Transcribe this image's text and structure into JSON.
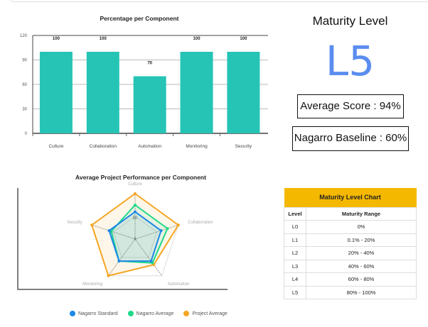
{
  "maturity": {
    "title": "Maturity Level",
    "level": "L5",
    "average_score": "Average Score :  94%",
    "baseline": "Nagarro Baseline : 60%"
  },
  "chart_data": [
    {
      "type": "bar",
      "title": "Percentage per Component",
      "categories": [
        "Culture",
        "Collaboration",
        "Automation",
        "Monitoring",
        "Security"
      ],
      "values": [
        100,
        100,
        70,
        100,
        100
      ],
      "ylim": [
        0,
        120
      ],
      "yticks": [
        0,
        30,
        60,
        90,
        120
      ],
      "color": "#26c4b5",
      "xlabel": "",
      "ylabel": ""
    },
    {
      "type": "radar",
      "title": "Average Project Performance per Component",
      "axes": [
        "Culture",
        "Collaboration",
        "Automation",
        "Monitoring",
        "Security"
      ],
      "scale_labels": [
        "0",
        "50"
      ],
      "rmax": 100,
      "series": [
        {
          "name": "Nagarro Standard",
          "color": "#1e88e5",
          "values": [
            60,
            60,
            60,
            60,
            60
          ]
        },
        {
          "name": "Nagarro Average",
          "color": "#1ed98a",
          "values": [
            75,
            75,
            65,
            60,
            55
          ]
        },
        {
          "name": "Project Average",
          "color": "#f5a623",
          "values": [
            100,
            100,
            70,
            100,
            100
          ]
        }
      ],
      "legend": "bottom"
    }
  ],
  "table": {
    "title": "Maturity Level Chart",
    "headers": [
      "Level",
      "Maturity Range"
    ],
    "rows": [
      [
        "L0",
        "0%"
      ],
      [
        "L1",
        "0.1% - 20%"
      ],
      [
        "L2",
        "20% - 40%"
      ],
      [
        "L3",
        "40% - 60%"
      ],
      [
        "L4",
        "60% - 80%"
      ],
      [
        "L5",
        "80% - 100%"
      ]
    ]
  }
}
